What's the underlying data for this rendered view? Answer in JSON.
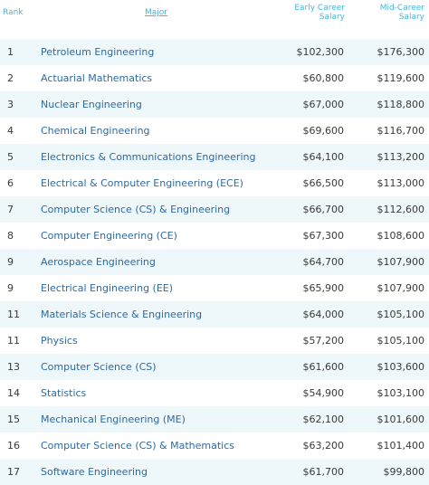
{
  "header": {
    "rank": "Rank",
    "major": "Major",
    "early_line1": "Early Career",
    "early_line2": "Salary",
    "mid_line1": "Mid-Career",
    "mid_line2": "Salary"
  },
  "rows": [
    {
      "rank": "1",
      "major": "Petroleum Engineering",
      "early": "$102,300",
      "mid": "$176,300"
    },
    {
      "rank": "2",
      "major": "Actuarial Mathematics",
      "early": "$60,800",
      "mid": "$119,600"
    },
    {
      "rank": "3",
      "major": "Nuclear Engineering",
      "early": "$67,000",
      "mid": "$118,800"
    },
    {
      "rank": "4",
      "major": "Chemical Engineering",
      "early": "$69,600",
      "mid": "$116,700"
    },
    {
      "rank": "5",
      "major": "Electronics & Communications Engineering",
      "early": "$64,100",
      "mid": "$113,200"
    },
    {
      "rank": "6",
      "major": "Electrical & Computer Engineering (ECE)",
      "early": "$66,500",
      "mid": "$113,000"
    },
    {
      "rank": "7",
      "major": "Computer Science (CS) & Engineering",
      "early": "$66,700",
      "mid": "$112,600"
    },
    {
      "rank": "8",
      "major": "Computer Engineering (CE)",
      "early": "$67,300",
      "mid": "$108,600"
    },
    {
      "rank": "9",
      "major": "Aerospace Engineering",
      "early": "$64,700",
      "mid": "$107,900"
    },
    {
      "rank": "9",
      "major": "Electrical Engineering (EE)",
      "early": "$65,900",
      "mid": "$107,900"
    },
    {
      "rank": "11",
      "major": "Materials Science & Engineering",
      "early": "$64,000",
      "mid": "$105,100"
    },
    {
      "rank": "11",
      "major": "Physics",
      "early": "$57,200",
      "mid": "$105,100"
    },
    {
      "rank": "13",
      "major": "Computer Science (CS)",
      "early": "$61,600",
      "mid": "$103,600"
    },
    {
      "rank": "14",
      "major": "Statistics",
      "early": "$54,900",
      "mid": "$103,100"
    },
    {
      "rank": "15",
      "major": "Mechanical Engineering (ME)",
      "early": "$62,100",
      "mid": "$101,600"
    },
    {
      "rank": "16",
      "major": "Computer Science (CS) & Mathematics",
      "early": "$63,200",
      "mid": "$101,400"
    },
    {
      "rank": "17",
      "major": "Software Engineering",
      "early": "$61,700",
      "mid": "$99,800"
    }
  ]
}
